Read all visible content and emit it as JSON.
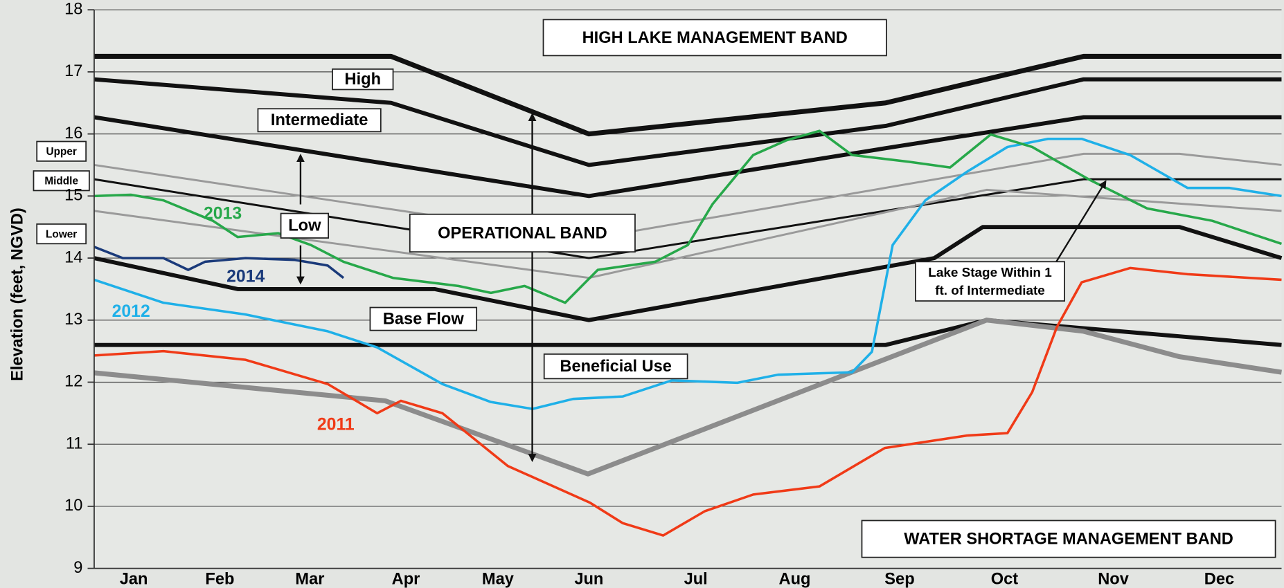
{
  "chart_data": {
    "type": "line",
    "ylabel": "Elevation (feet, NGVD)",
    "xlim": [
      0,
      12
    ],
    "ylim": [
      9,
      18
    ],
    "yticks": [
      9,
      10,
      11,
      12,
      13,
      14,
      15,
      16,
      17,
      18
    ],
    "xticks": [
      {
        "value": 0.4,
        "label": "Jan"
      },
      {
        "value": 1.27,
        "label": "Feb"
      },
      {
        "value": 2.18,
        "label": "Mar"
      },
      {
        "value": 3.15,
        "label": "Apr"
      },
      {
        "value": 4.08,
        "label": "May"
      },
      {
        "value": 5.0,
        "label": "Jun"
      },
      {
        "value": 6.08,
        "label": "Jul"
      },
      {
        "value": 7.08,
        "label": "Aug"
      },
      {
        "value": 8.14,
        "label": "Sep"
      },
      {
        "value": 9.2,
        "label": "Oct"
      },
      {
        "value": 10.3,
        "label": "Nov"
      },
      {
        "value": 11.37,
        "label": "Dec"
      }
    ],
    "grid": true,
    "annotations": [
      "HIGH LAKE MANAGEMENT BAND",
      "High",
      "Intermediate",
      "Upper",
      "Middle",
      "Lower",
      "Low",
      "OPERATIONAL BAND",
      "Base Flow",
      "Beneficial Use",
      "Lake Stage Within 1",
      "ft. of Intermediate",
      "WATER SHORTAGE MANAGEMENT BAND"
    ],
    "series": [
      {
        "color": "#111111",
        "x": [
          0,
          3,
          5,
          8,
          10,
          12
        ],
        "values": [
          17.25,
          17.25,
          16.0,
          16.5,
          17.25,
          17.25
        ]
      },
      {
        "color": "#111111",
        "x": [
          0,
          3,
          5,
          8,
          10,
          12
        ],
        "values": [
          16.88,
          16.5,
          15.5,
          16.13,
          16.88,
          16.88
        ]
      },
      {
        "color": "#111111",
        "x": [
          0,
          5,
          8,
          10,
          12
        ],
        "values": [
          16.27,
          15.0,
          15.77,
          16.27,
          16.27
        ]
      },
      {
        "color": "#111111",
        "x": [
          0,
          5,
          10,
          12
        ],
        "values": [
          15.27,
          14.0,
          15.27,
          15.27
        ]
      },
      {
        "color": "#111111",
        "x": [
          0,
          1.45,
          3.44,
          5.0,
          8.49,
          8.98,
          10.97,
          12
        ],
        "values": [
          14.0,
          13.5,
          13.5,
          13.0,
          14.0,
          14.5,
          14.5,
          14.0
        ]
      },
      {
        "color": "#111111",
        "x": [
          0,
          8.0,
          9.02,
          12
        ],
        "values": [
          12.6,
          12.6,
          13.0,
          12.6
        ]
      },
      {
        "color": "#8c8c8c",
        "x": [
          0,
          2.94,
          4.99,
          9.02,
          10.0,
          10.97,
          12
        ],
        "values": [
          12.15,
          11.7,
          10.52,
          13.0,
          12.82,
          12.41,
          12.16
        ]
      },
      {
        "color": "#9a9a9a",
        "x": [
          0,
          5,
          10,
          10.97,
          12
        ],
        "values": [
          15.5,
          14.31,
          15.68,
          15.68,
          15.5
        ]
      },
      {
        "color": "#9a9a9a",
        "x": [
          0,
          5,
          9.02,
          12
        ],
        "values": [
          14.76,
          13.68,
          15.1,
          14.76
        ]
      },
      {
        "name": "2011",
        "color": "#f03a17",
        "x": [
          0,
          0.7,
          1.53,
          2.36,
          2.86,
          3.1,
          3.52,
          4.18,
          5.01,
          5.34,
          5.75,
          6.17,
          6.66,
          7.33,
          7.99,
          8.82,
          9.23,
          9.48,
          9.73,
          9.98,
          10.47,
          11.05,
          12
        ],
        "values": [
          12.43,
          12.5,
          12.36,
          11.97,
          11.5,
          11.7,
          11.5,
          10.65,
          10.06,
          9.73,
          9.53,
          9.92,
          10.19,
          10.32,
          10.94,
          11.14,
          11.18,
          11.84,
          12.89,
          13.61,
          13.84,
          13.74,
          13.65
        ]
      },
      {
        "name": "2012",
        "color": "#1fb0e8",
        "x": [
          0,
          0.7,
          1.53,
          2.36,
          2.86,
          3.52,
          4.01,
          4.43,
          4.84,
          5.34,
          5.84,
          6.5,
          6.91,
          7.66,
          7.86,
          8.07,
          8.4,
          8.82,
          9.23,
          9.64,
          9.98,
          10.47,
          11.05,
          11.47,
          12
        ],
        "values": [
          13.65,
          13.28,
          13.09,
          12.82,
          12.56,
          11.97,
          11.68,
          11.57,
          11.73,
          11.77,
          12.03,
          11.99,
          12.12,
          12.16,
          12.49,
          14.21,
          14.93,
          15.39,
          15.79,
          15.92,
          15.92,
          15.66,
          15.13,
          15.13,
          15.0
        ]
      },
      {
        "name": "2013",
        "color": "#27a84a",
        "x": [
          0,
          0.37,
          0.7,
          1.2,
          1.45,
          1.86,
          2.19,
          2.52,
          3.02,
          3.68,
          4.01,
          4.35,
          4.76,
          5.09,
          5.67,
          6.0,
          6.25,
          6.66,
          7.0,
          7.33,
          7.66,
          8.24,
          8.65,
          9.06,
          9.48,
          10.06,
          10.64,
          11.3,
          12
        ],
        "values": [
          15.0,
          15.02,
          14.93,
          14.6,
          14.34,
          14.4,
          14.21,
          13.94,
          13.68,
          13.55,
          13.44,
          13.55,
          13.28,
          13.81,
          13.94,
          14.21,
          14.87,
          15.66,
          15.9,
          16.05,
          15.66,
          15.55,
          15.46,
          15.99,
          15.79,
          15.26,
          14.8,
          14.6,
          14.23
        ]
      },
      {
        "name": "2014",
        "color": "#1a3a7a",
        "x": [
          0,
          0.29,
          0.7,
          0.95,
          1.12,
          1.53,
          2.03,
          2.36,
          2.52
        ],
        "values": [
          14.18,
          14.0,
          14.0,
          13.81,
          13.94,
          14.0,
          13.97,
          13.88,
          13.68
        ]
      }
    ]
  }
}
